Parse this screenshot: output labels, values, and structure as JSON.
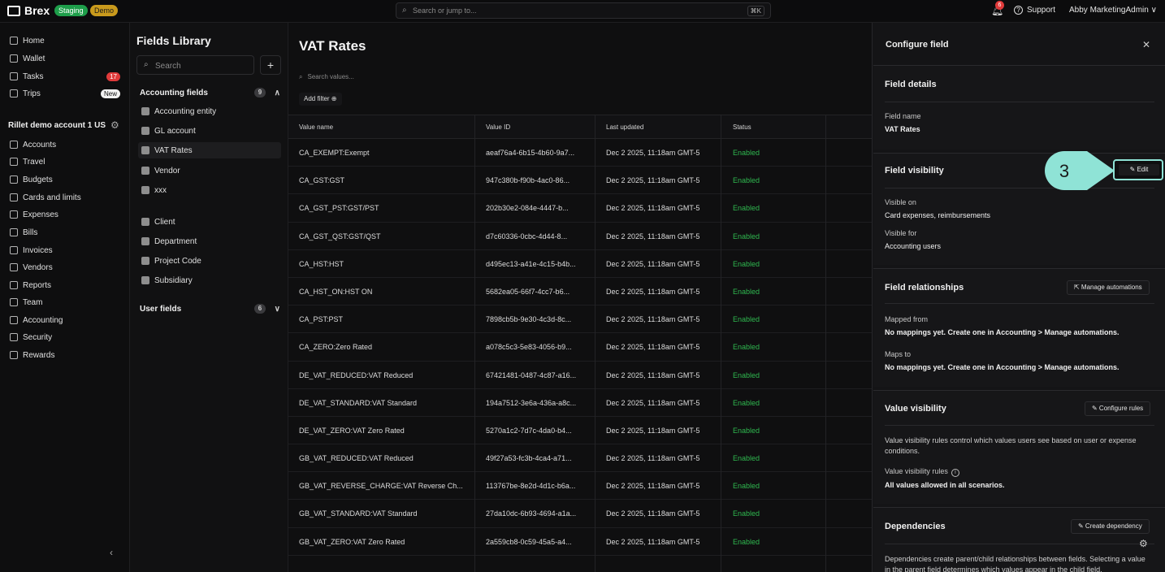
{
  "topbar": {
    "brand": "Brex",
    "badge_staging": "Staging",
    "badge_demo": "Demo",
    "search_placeholder": "Search or jump to...",
    "search_shortcut": "⌘K",
    "notifications_count": "6",
    "support_label": "Support",
    "user_name": "Abby MarketingAdmin ∨"
  },
  "sidebar": {
    "top_items": [
      {
        "label": "Home",
        "icon": "home-icon"
      },
      {
        "label": "Wallet",
        "icon": "wallet-icon"
      },
      {
        "label": "Tasks",
        "icon": "tasks-icon",
        "badge": "17"
      },
      {
        "label": "Trips",
        "icon": "trips-icon",
        "badge": "New"
      }
    ],
    "account_title": "Rillet demo account 1 US",
    "items": [
      {
        "label": "Accounts"
      },
      {
        "label": "Travel"
      },
      {
        "label": "Budgets"
      },
      {
        "label": "Cards and limits"
      },
      {
        "label": "Expenses"
      },
      {
        "label": "Bills"
      },
      {
        "label": "Invoices"
      },
      {
        "label": "Vendors"
      },
      {
        "label": "Reports"
      },
      {
        "label": "Team"
      },
      {
        "label": "Accounting"
      },
      {
        "label": "Security"
      },
      {
        "label": "Rewards"
      }
    ]
  },
  "library": {
    "title": "Fields Library",
    "search_placeholder": "Search",
    "accounting_group": {
      "label": "Accounting fields",
      "count": "9"
    },
    "accounting_items": [
      "Accounting entity",
      "GL account",
      "VAT Rates",
      "Vendor",
      "xxx"
    ],
    "other_items": [
      "Client",
      "Department",
      "Project Code",
      "Subsidiary"
    ],
    "user_group": {
      "label": "User fields",
      "count": "6"
    }
  },
  "main": {
    "title": "VAT Rates",
    "search_placeholder": "Search values...",
    "add_filter": "Add filter ⊕",
    "columns": [
      "Value name",
      "Value ID",
      "Last updated",
      "Status"
    ],
    "rows": [
      [
        "CA_EXEMPT:Exempt",
        "aeaf76a4-6b15-4b60-9a7...",
        "Dec 2 2025, 11:18am GMT-5",
        "Enabled"
      ],
      [
        "CA_GST:GST",
        "947c380b-f90b-4ac0-86...",
        "Dec 2 2025, 11:18am GMT-5",
        "Enabled"
      ],
      [
        "CA_GST_PST:GST/PST",
        "202b30e2-084e-4447-b...",
        "Dec 2 2025, 11:18am GMT-5",
        "Enabled"
      ],
      [
        "CA_GST_QST:GST/QST",
        "d7c60336-0cbc-4d44-8...",
        "Dec 2 2025, 11:18am GMT-5",
        "Enabled"
      ],
      [
        "CA_HST:HST",
        "d495ec13-a41e-4c15-b4b...",
        "Dec 2 2025, 11:18am GMT-5",
        "Enabled"
      ],
      [
        "CA_HST_ON:HST ON",
        "5682ea05-66f7-4cc7-b6...",
        "Dec 2 2025, 11:18am GMT-5",
        "Enabled"
      ],
      [
        "CA_PST:PST",
        "7898cb5b-9e30-4c3d-8c...",
        "Dec 2 2025, 11:18am GMT-5",
        "Enabled"
      ],
      [
        "CA_ZERO:Zero Rated",
        "a078c5c3-5e83-4056-b9...",
        "Dec 2 2025, 11:18am GMT-5",
        "Enabled"
      ],
      [
        "DE_VAT_REDUCED:VAT Reduced",
        "67421481-0487-4c87-a16...",
        "Dec 2 2025, 11:18am GMT-5",
        "Enabled"
      ],
      [
        "DE_VAT_STANDARD:VAT Standard",
        "194a7512-3e6a-436a-a8c...",
        "Dec 2 2025, 11:18am GMT-5",
        "Enabled"
      ],
      [
        "DE_VAT_ZERO:VAT Zero Rated",
        "5270a1c2-7d7c-4da0-b4...",
        "Dec 2 2025, 11:18am GMT-5",
        "Enabled"
      ],
      [
        "GB_VAT_REDUCED:VAT Reduced",
        "49f27a53-fc3b-4ca4-a71...",
        "Dec 2 2025, 11:18am GMT-5",
        "Enabled"
      ],
      [
        "GB_VAT_REVERSE_CHARGE:VAT Reverse Ch...",
        "113767be-8e2d-4d1c-b6a...",
        "Dec 2 2025, 11:18am GMT-5",
        "Enabled"
      ],
      [
        "GB_VAT_STANDARD:VAT Standard",
        "27da10dc-6b93-4694-a1a...",
        "Dec 2 2025, 11:18am GMT-5",
        "Enabled"
      ],
      [
        "GB_VAT_ZERO:VAT Zero Rated",
        "2a559cb8-0c59-45a5-a4...",
        "Dec 2 2025, 11:18am GMT-5",
        "Enabled"
      ]
    ]
  },
  "panel": {
    "title": "Configure field",
    "details": {
      "title": "Field details",
      "name_label": "Field name",
      "name_value": "VAT Rates"
    },
    "visibility": {
      "title": "Field visibility",
      "edit_label": "✎ Edit",
      "step_number": "3",
      "visible_on_label": "Visible on",
      "visible_on_value": "Card expenses, reimbursements",
      "visible_for_label": "Visible for",
      "visible_for_value": "Accounting users"
    },
    "relationships": {
      "title": "Field relationships",
      "button": "⇱ Manage automations",
      "mapped_from_label": "Mapped from",
      "mapped_from_value": "No mappings yet. Create one in Accounting > Manage automations.",
      "maps_to_label": "Maps to",
      "maps_to_value": "No mappings yet. Create one in Accounting > Manage automations."
    },
    "value_visibility": {
      "title": "Value visibility",
      "button": "✎ Configure rules",
      "description": "Value visibility rules control which values users see based on user or expense conditions.",
      "rules_label": "Value visibility rules",
      "rules_value": "All values allowed in all scenarios."
    },
    "dependencies": {
      "title": "Dependencies",
      "button": "✎ Create dependency",
      "description": "Dependencies create parent/child relationships between fields. Selecting a value in the parent field determines which values appear in the child field."
    }
  },
  "colors": {
    "accent_callout": "#8fe3d6",
    "status_enabled": "#2fb84f",
    "badge_red": "#e03a3a"
  }
}
